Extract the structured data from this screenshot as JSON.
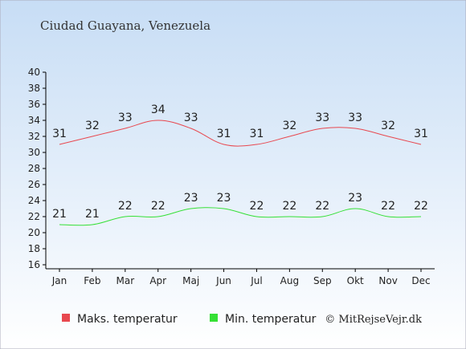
{
  "title": "Ciudad Guayana, Venezuela",
  "copyright": "© MitRejseVejr.dk",
  "colors": {
    "max": "#e8484f",
    "min": "#35e035",
    "axis": "#000000",
    "background_top": "#c7ddf5",
    "background_bottom": "#ffffff"
  },
  "chart_data": {
    "type": "line",
    "categories": [
      "Jan",
      "Feb",
      "Mar",
      "Apr",
      "Maj",
      "Jun",
      "Jul",
      "Aug",
      "Sep",
      "Okt",
      "Nov",
      "Dec"
    ],
    "series": [
      {
        "name": "Maks. temperatur",
        "values": [
          31,
          32,
          33,
          34,
          33,
          31,
          31,
          32,
          33,
          33,
          32,
          31
        ]
      },
      {
        "name": "Min. temperatur",
        "values": [
          21,
          21,
          22,
          22,
          23,
          23,
          22,
          22,
          22,
          23,
          22,
          22
        ]
      }
    ],
    "ylim": [
      16,
      40
    ],
    "yticks": [
      "16",
      "18",
      "20",
      "22",
      "24",
      "26",
      "28",
      "30",
      "32",
      "34",
      "36",
      "38",
      "40"
    ],
    "legend_position": "bottom-left",
    "grid": false
  }
}
